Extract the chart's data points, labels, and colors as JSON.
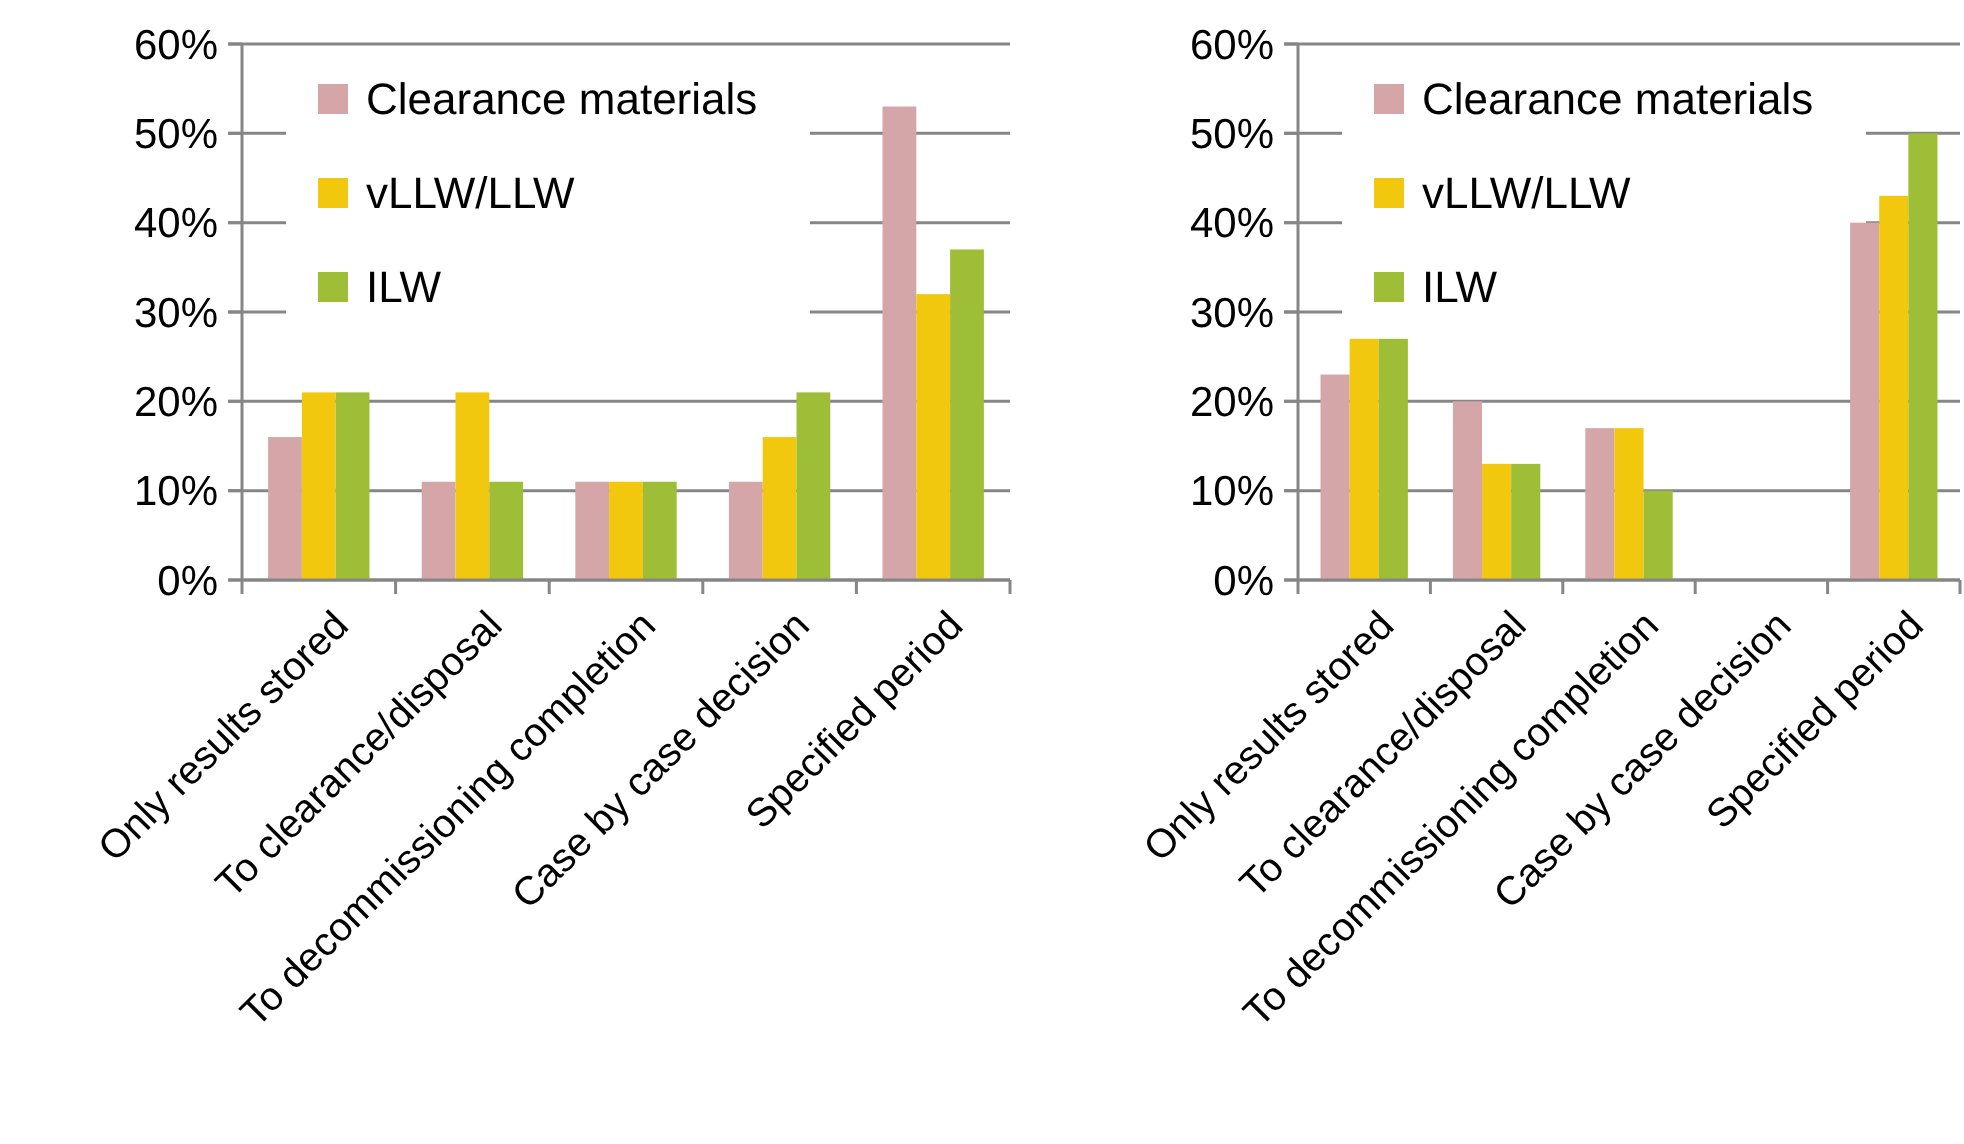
{
  "chart_data": [
    {
      "type": "bar",
      "categories": [
        "Only results stored",
        "To clearance/disposal",
        "To decommissioning completion",
        "Case by case decision",
        "Specified period"
      ],
      "series": [
        {
          "name": "Clearance materials",
          "color": "#d5a6a8",
          "values": [
            16,
            11,
            11,
            11,
            53
          ]
        },
        {
          "name": "vLLW/LLW",
          "color": "#f2c80f",
          "values": [
            21,
            21,
            11,
            16,
            32
          ]
        },
        {
          "name": "ILW",
          "color": "#9fbe38",
          "values": [
            21,
            11,
            11,
            21,
            37
          ]
        }
      ],
      "ylim": [
        0,
        60
      ],
      "yticks": [
        {
          "value": 0,
          "label": "0%"
        },
        {
          "value": 10,
          "label": "10%"
        },
        {
          "value": 20,
          "label": "20%"
        },
        {
          "value": 30,
          "label": "30%"
        },
        {
          "value": 40,
          "label": "40%"
        },
        {
          "value": 50,
          "label": "50%"
        },
        {
          "value": 60,
          "label": "60%"
        }
      ],
      "grid": "y",
      "legend": "top left"
    },
    {
      "type": "bar",
      "categories": [
        "Only results stored",
        "To clearance/disposal",
        "To decommissioning completion",
        "Case by case decision",
        "Specified period"
      ],
      "series": [
        {
          "name": "Clearance materials",
          "color": "#d5a6a8",
          "values": [
            23,
            20,
            17,
            0,
            40
          ]
        },
        {
          "name": "vLLW/LLW",
          "color": "#f2c80f",
          "values": [
            27,
            13,
            17,
            0,
            43
          ]
        },
        {
          "name": "ILW",
          "color": "#9fbe38",
          "values": [
            27,
            13,
            10,
            0,
            50
          ]
        }
      ],
      "ylim": [
        0,
        60
      ],
      "yticks": [
        {
          "value": 0,
          "label": "0%"
        },
        {
          "value": 10,
          "label": "10%"
        },
        {
          "value": 20,
          "label": "20%"
        },
        {
          "value": 30,
          "label": "30%"
        },
        {
          "value": 40,
          "label": "40%"
        },
        {
          "value": 50,
          "label": "50%"
        },
        {
          "value": 60,
          "label": "60%"
        }
      ],
      "grid": "y",
      "legend": "top left"
    }
  ]
}
